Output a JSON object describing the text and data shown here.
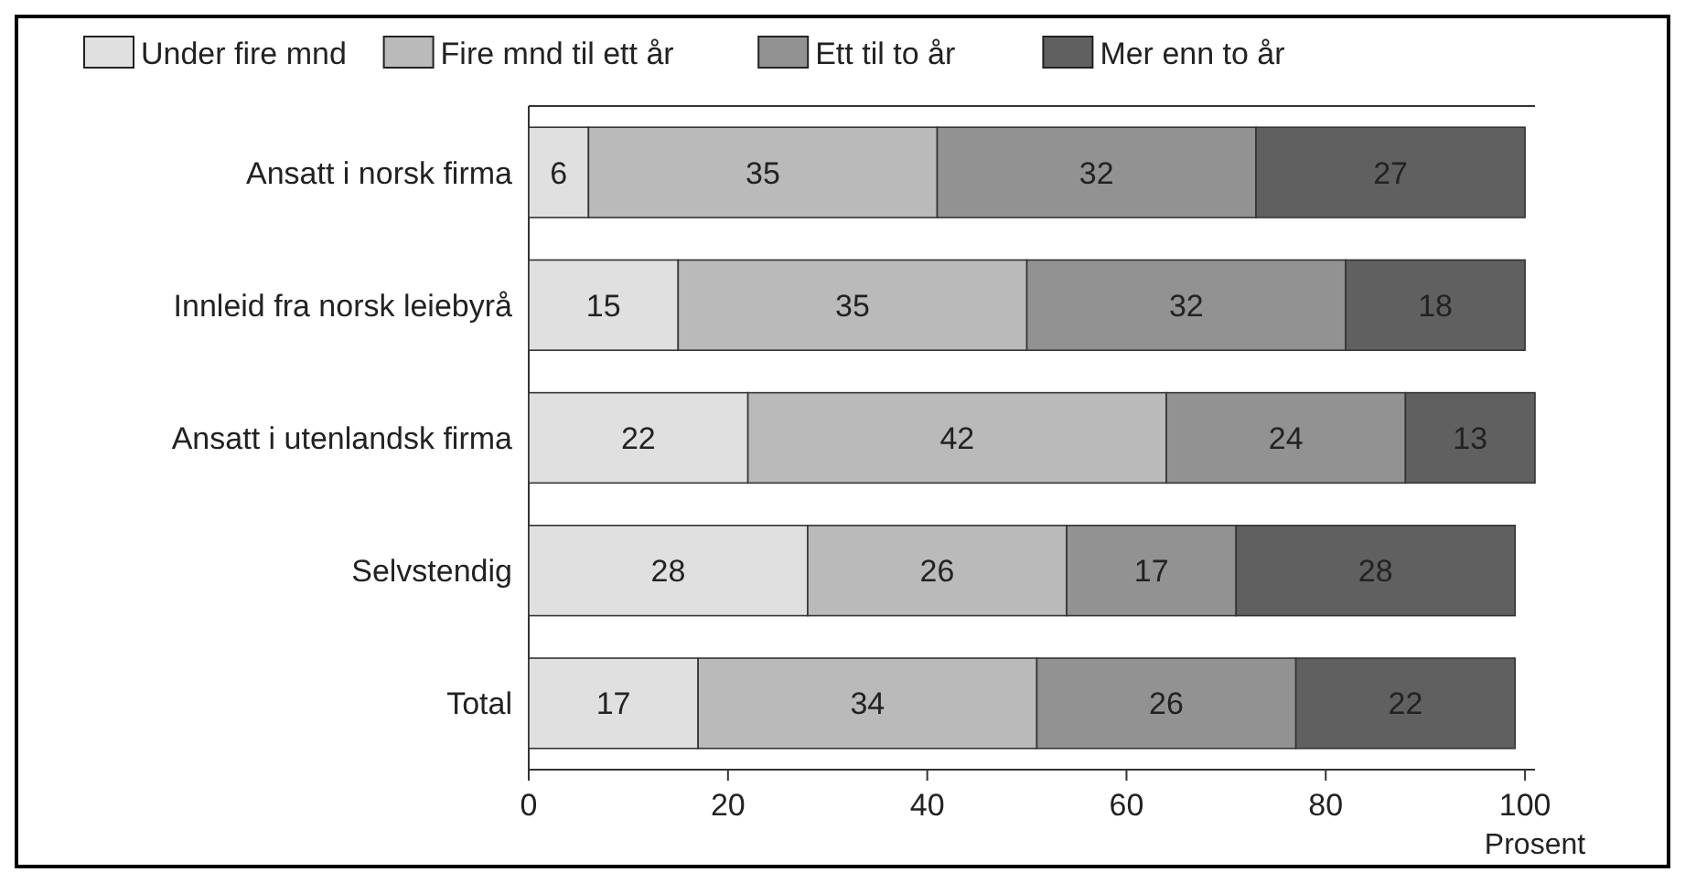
{
  "chart_data": {
    "type": "bar",
    "orientation": "horizontal",
    "stacked": true,
    "xlabel": "Prosent",
    "categories": [
      "Ansatt i norsk firma",
      "Innleid fra norsk leiebyrå",
      "Ansatt i utenlandsk firma",
      "Selvstendig",
      "Total"
    ],
    "series": [
      {
        "name": "Under fire mnd",
        "color": "#e0e0e0",
        "values": [
          6,
          15,
          22,
          28,
          17
        ]
      },
      {
        "name": "Fire mnd til ett år",
        "color": "#bababa",
        "values": [
          35,
          35,
          42,
          26,
          34
        ]
      },
      {
        "name": "Ett til to år",
        "color": "#929292",
        "values": [
          32,
          32,
          24,
          17,
          26
        ]
      },
      {
        "name": "Mer enn to år",
        "color": "#606060",
        "values": [
          27,
          18,
          13,
          28,
          22
        ]
      }
    ],
    "xlim": [
      0,
      101
    ],
    "xticks": [
      0,
      20,
      40,
      60,
      80,
      100
    ],
    "data_labels": true,
    "legend": "top",
    "grid": false
  }
}
